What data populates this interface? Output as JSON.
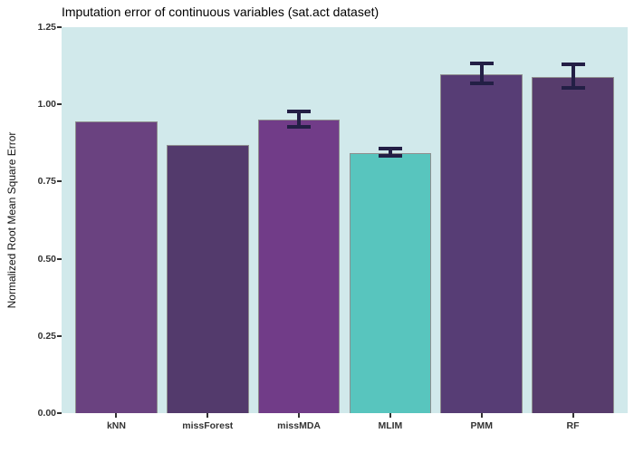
{
  "chart_data": {
    "type": "bar",
    "title": "Imputation error of continuous variables (sat.act dataset)",
    "xlabel": "",
    "ylabel": "Normalized Root Mean Square Error",
    "categories": [
      "kNN",
      "missForest",
      "missMDA",
      "MLIM",
      "PMM",
      "RF"
    ],
    "values": [
      0.944,
      0.868,
      0.952,
      0.843,
      1.096,
      1.088
    ],
    "bar_colors": [
      "#6a4280",
      "#533a6c",
      "#713c88",
      "#58c5be",
      "#573d75",
      "#573c6c"
    ],
    "error_bars": [
      null,
      null,
      {
        "ymin": 0.926,
        "ymax": 0.978
      },
      {
        "ymin": 0.833,
        "ymax": 0.857
      },
      {
        "ymin": 1.068,
        "ymax": 1.134
      },
      {
        "ymin": 1.053,
        "ymax": 1.129
      }
    ],
    "ylim": [
      0,
      1.25
    ],
    "yticks": [
      0,
      0.25,
      0.5,
      0.75,
      1,
      1.25
    ],
    "ytick_labels": [
      "0.00",
      "0.25",
      "0.50",
      "0.75",
      "1.00",
      "1.25"
    ],
    "grid": false,
    "legend": "none",
    "panel_background": "#d1e9eb",
    "figure_background": "#ffffff",
    "bar_outline_color": "#8f8f8f",
    "errorbar_color": "#231f45",
    "axis_text_color": "#333333"
  }
}
